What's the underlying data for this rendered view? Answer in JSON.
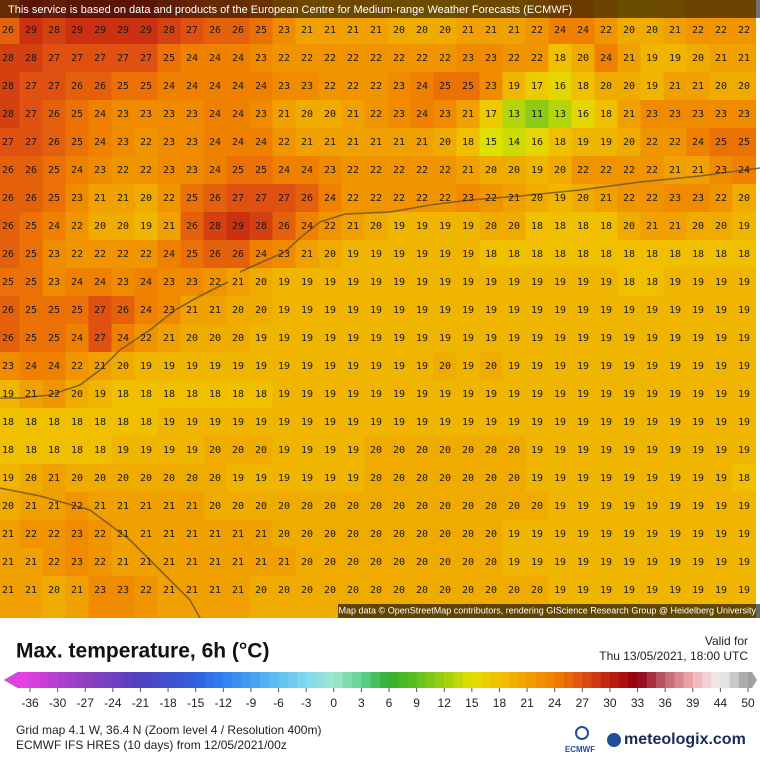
{
  "header": {
    "notice": "This service is based on data and products of the European Centre for Medium-range Weather Forecasts (ECMWF)"
  },
  "map": {
    "attribution": "Map data © OpenStreetMap contributors, rendering GIScience Research Group @ Heidelberg University",
    "grid": [
      [
        26,
        29,
        28,
        29,
        29,
        29,
        29,
        28,
        27,
        26,
        26,
        25,
        23,
        21,
        21,
        21,
        21,
        20,
        20,
        20,
        21,
        21,
        21,
        22,
        24,
        24,
        22,
        20,
        20,
        21,
        22,
        22,
        22
      ],
      [
        28,
        28,
        27,
        27,
        27,
        27,
        27,
        25,
        24,
        24,
        24,
        23,
        22,
        22,
        22,
        22,
        22,
        22,
        22,
        22,
        23,
        23,
        22,
        22,
        18,
        20,
        24,
        21,
        19,
        19,
        20,
        21,
        21
      ],
      [
        28,
        27,
        27,
        26,
        26,
        25,
        25,
        24,
        24,
        24,
        24,
        24,
        23,
        23,
        22,
        22,
        22,
        23,
        24,
        25,
        25,
        23,
        19,
        17,
        16,
        18,
        20,
        20,
        19,
        21,
        21,
        20,
        20
      ],
      [
        28,
        27,
        26,
        25,
        24,
        23,
        23,
        23,
        23,
        24,
        24,
        23,
        21,
        20,
        20,
        21,
        22,
        23,
        24,
        23,
        21,
        17,
        13,
        11,
        13,
        16,
        18,
        21,
        23,
        23,
        23,
        23,
        23
      ],
      [
        27,
        27,
        26,
        25,
        24,
        23,
        22,
        23,
        23,
        24,
        24,
        24,
        22,
        21,
        21,
        21,
        21,
        21,
        21,
        20,
        18,
        15,
        14,
        16,
        18,
        19,
        19,
        20,
        22,
        22,
        24,
        25,
        25
      ],
      [
        26,
        26,
        25,
        24,
        23,
        22,
        22,
        23,
        23,
        24,
        25,
        25,
        24,
        24,
        23,
        22,
        22,
        22,
        22,
        22,
        21,
        20,
        20,
        19,
        20,
        22,
        22,
        22,
        22,
        21,
        21,
        23,
        24
      ],
      [
        26,
        26,
        25,
        23,
        21,
        21,
        20,
        22,
        25,
        26,
        27,
        27,
        27,
        26,
        24,
        22,
        22,
        22,
        22,
        22,
        23,
        22,
        21,
        20,
        19,
        20,
        21,
        22,
        22,
        23,
        23,
        22,
        20
      ],
      [
        26,
        25,
        24,
        22,
        20,
        20,
        19,
        21,
        26,
        28,
        29,
        28,
        26,
        24,
        22,
        21,
        20,
        19,
        19,
        19,
        19,
        20,
        20,
        18,
        18,
        18,
        18,
        20,
        21,
        21,
        20,
        20,
        19
      ],
      [
        26,
        25,
        23,
        22,
        22,
        22,
        22,
        24,
        25,
        26,
        26,
        24,
        23,
        21,
        20,
        19,
        19,
        19,
        19,
        19,
        19,
        18,
        18,
        18,
        18,
        18,
        18,
        18,
        18,
        18,
        18,
        18,
        18
      ],
      [
        25,
        25,
        23,
        24,
        24,
        23,
        24,
        23,
        23,
        22,
        21,
        20,
        19,
        19,
        19,
        19,
        19,
        19,
        19,
        19,
        19,
        19,
        19,
        19,
        19,
        19,
        19,
        18,
        18,
        19,
        19,
        19,
        19
      ],
      [
        26,
        25,
        25,
        25,
        27,
        26,
        24,
        23,
        21,
        21,
        20,
        20,
        19,
        19,
        19,
        19,
        19,
        19,
        19,
        19,
        19,
        19,
        19,
        19,
        19,
        19,
        19,
        19,
        19,
        19,
        19,
        19,
        19
      ],
      [
        26,
        25,
        25,
        24,
        27,
        24,
        22,
        21,
        20,
        20,
        20,
        19,
        19,
        19,
        19,
        19,
        19,
        19,
        19,
        19,
        19,
        19,
        19,
        19,
        19,
        19,
        19,
        19,
        19,
        19,
        19,
        19,
        19
      ],
      [
        23,
        24,
        24,
        22,
        21,
        20,
        19,
        19,
        19,
        19,
        19,
        19,
        19,
        19,
        19,
        19,
        19,
        19,
        19,
        20,
        19,
        20,
        19,
        19,
        19,
        19,
        19,
        19,
        19,
        19,
        19,
        19,
        19
      ],
      [
        19,
        21,
        22,
        20,
        19,
        18,
        18,
        18,
        18,
        18,
        18,
        18,
        19,
        19,
        19,
        19,
        19,
        19,
        19,
        19,
        19,
        19,
        19,
        19,
        19,
        19,
        19,
        19,
        19,
        19,
        19,
        19,
        19
      ],
      [
        18,
        18,
        18,
        18,
        18,
        18,
        18,
        19,
        19,
        19,
        19,
        19,
        19,
        19,
        19,
        19,
        19,
        19,
        19,
        19,
        19,
        19,
        19,
        19,
        19,
        19,
        19,
        19,
        19,
        19,
        19,
        19,
        19
      ],
      [
        18,
        18,
        18,
        18,
        18,
        19,
        19,
        19,
        19,
        20,
        20,
        20,
        19,
        19,
        19,
        19,
        20,
        20,
        20,
        20,
        20,
        20,
        20,
        19,
        19,
        19,
        19,
        19,
        19,
        19,
        19,
        19,
        19
      ],
      [
        19,
        20,
        21,
        20,
        20,
        20,
        20,
        20,
        20,
        20,
        19,
        19,
        19,
        19,
        19,
        19,
        20,
        20,
        20,
        20,
        20,
        20,
        20,
        19,
        19,
        19,
        19,
        19,
        19,
        19,
        19,
        19,
        18
      ],
      [
        20,
        21,
        21,
        22,
        21,
        21,
        21,
        21,
        21,
        20,
        20,
        20,
        20,
        20,
        20,
        20,
        20,
        20,
        20,
        20,
        20,
        20,
        20,
        20,
        19,
        19,
        19,
        19,
        19,
        19,
        19,
        19,
        19
      ],
      [
        21,
        22,
        22,
        23,
        22,
        21,
        21,
        21,
        21,
        21,
        21,
        21,
        20,
        20,
        20,
        20,
        20,
        20,
        20,
        20,
        20,
        20,
        19,
        19,
        19,
        19,
        19,
        19,
        19,
        19,
        19,
        19,
        19
      ],
      [
        21,
        21,
        22,
        23,
        22,
        21,
        21,
        21,
        21,
        21,
        21,
        21,
        21,
        20,
        20,
        20,
        20,
        20,
        20,
        20,
        20,
        20,
        19,
        19,
        19,
        19,
        19,
        19,
        19,
        19,
        19,
        19,
        19
      ],
      [
        21,
        21,
        20,
        21,
        23,
        23,
        22,
        21,
        21,
        21,
        21,
        20,
        20,
        20,
        20,
        20,
        20,
        20,
        20,
        20,
        20,
        20,
        20,
        20,
        19,
        19,
        19,
        19,
        19,
        19,
        19,
        19,
        19
      ]
    ]
  },
  "legend": {
    "title": "Max. temperature, 6h (°C)",
    "valid_label": "Valid for",
    "valid_time": "Thu 13/05/2021, 18:00 UTC",
    "ticks": [
      -36,
      -30,
      -27,
      -24,
      -21,
      -18,
      -15,
      -12,
      -9,
      -6,
      -3,
      0,
      3,
      6,
      9,
      12,
      15,
      18,
      21,
      24,
      27,
      30,
      33,
      36,
      39,
      44,
      50
    ],
    "colors": [
      "#e040e0",
      "#b040d0",
      "#9040c0",
      "#7040c0",
      "#5040c0",
      "#4050d0",
      "#3060e0",
      "#3080f0",
      "#40a0f0",
      "#60c0f0",
      "#80d8f0",
      "#a0e8d0",
      "#60d090",
      "#30b030",
      "#60c020",
      "#a0d010",
      "#e0e000",
      "#f0c000",
      "#f0a000",
      "#f08000",
      "#e05010",
      "#c02010",
      "#900010",
      "#c06070",
      "#f0b0b0",
      "#f0f0f0",
      "#a0a0a0"
    ]
  },
  "footer": {
    "grid_info": "Grid map 4.1 W, 36.4 N (Zoom level 4 / Resolution 400m)",
    "model": "ECMWF IFS HRES (10 days) from 12/05/2021/00z",
    "ecmwf_logo": "ECMWF",
    "brand": "meteologix.com"
  }
}
